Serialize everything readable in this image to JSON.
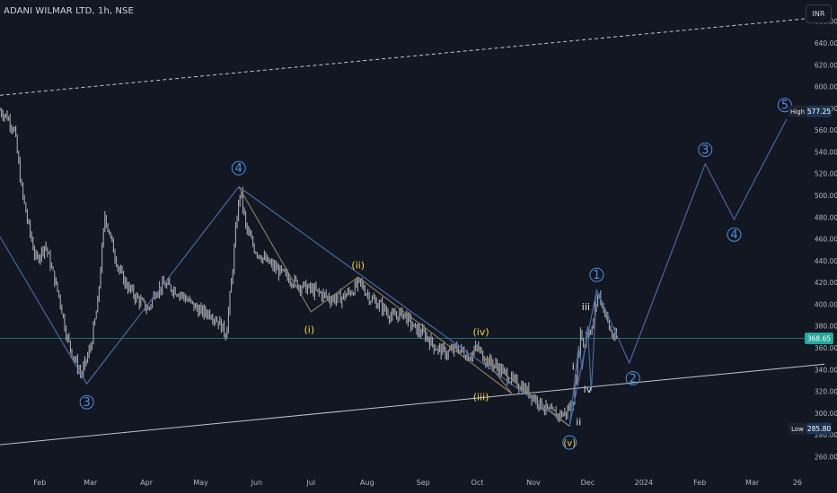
{
  "header": {
    "symbol_title": "ADANI WILMAR LTD, 1h, NSE",
    "currency_button": "INR"
  },
  "colors": {
    "background": "#131722",
    "candle": "#a5a7ad",
    "wave_line": "#4a6fa5",
    "sub_wave_line": "#8b8060",
    "label_blue": "#4f8fd6",
    "label_yellow": "#f0d24c",
    "label_white": "#e0e0e0",
    "trend_line": "#c0c3cc",
    "current_price_line": "#26a69a",
    "badge_dark": "#1e222d",
    "badge_blue": "#1d3452"
  },
  "chart_data": {
    "type": "line",
    "title": "ADANI WILMAR LTD, 1h, NSE",
    "currency": "INR",
    "price_axis": {
      "min": 248,
      "max": 668,
      "ticks": [
        260,
        280,
        300,
        320,
        340,
        360,
        380,
        400,
        420,
        440,
        460,
        480,
        500,
        520,
        540,
        560,
        580,
        600,
        620,
        640,
        660
      ],
      "tick_labels": [
        "260.00",
        "280.00",
        "300.00",
        "320.00",
        "340.00",
        "360.00",
        "380.00",
        "400.00",
        "420.00",
        "440.00",
        "460.00",
        "480.00",
        "500.00",
        "520.00",
        "540.00",
        "560.00",
        "580.00",
        "600.00",
        "620.00",
        "640.00",
        "660.00"
      ]
    },
    "time_axis": {
      "domain": [
        "2023-01-10",
        "2024-03-30"
      ],
      "ticks": [
        {
          "date": "2023-02-01",
          "label": "Feb"
        },
        {
          "date": "2023-03-01",
          "label": "Mar"
        },
        {
          "date": "2023-04-01",
          "label": "Apr"
        },
        {
          "date": "2023-05-01",
          "label": "May"
        },
        {
          "date": "2023-06-01",
          "label": "Jun"
        },
        {
          "date": "2023-07-01",
          "label": "Jul"
        },
        {
          "date": "2023-08-01",
          "label": "Aug"
        },
        {
          "date": "2023-09-01",
          "label": "Sep"
        },
        {
          "date": "2023-10-01",
          "label": "Oct"
        },
        {
          "date": "2023-11-01",
          "label": "Nov"
        },
        {
          "date": "2023-12-01",
          "label": "Dec"
        },
        {
          "date": "2024-01-01",
          "label": "2024"
        },
        {
          "date": "2024-02-01",
          "label": "Feb"
        },
        {
          "date": "2024-03-01",
          "label": "Mar"
        },
        {
          "date": "2024-03-26",
          "label": "26"
        }
      ]
    },
    "price_path": [
      [
        "2023-01-10",
        578
      ],
      [
        "2023-01-14",
        572
      ],
      [
        "2023-01-18",
        560
      ],
      [
        "2023-01-22",
        505
      ],
      [
        "2023-01-26",
        470
      ],
      [
        "2023-01-30",
        440
      ],
      [
        "2023-02-04",
        455
      ],
      [
        "2023-02-08",
        430
      ],
      [
        "2023-02-12",
        405
      ],
      [
        "2023-02-16",
        370
      ],
      [
        "2023-02-20",
        350
      ],
      [
        "2023-02-24",
        335
      ],
      [
        "2023-03-01",
        360
      ],
      [
        "2023-03-05",
        400
      ],
      [
        "2023-03-09",
        482
      ],
      [
        "2023-03-13",
        455
      ],
      [
        "2023-03-17",
        430
      ],
      [
        "2023-03-22",
        415
      ],
      [
        "2023-03-27",
        405
      ],
      [
        "2023-04-02",
        395
      ],
      [
        "2023-04-06",
        412
      ],
      [
        "2023-04-11",
        418
      ],
      [
        "2023-04-16",
        414
      ],
      [
        "2023-04-21",
        408
      ],
      [
        "2023-04-26",
        400
      ],
      [
        "2023-05-01",
        393
      ],
      [
        "2023-05-06",
        392
      ],
      [
        "2023-05-11",
        384
      ],
      [
        "2023-05-15",
        372
      ],
      [
        "2023-05-18",
        420
      ],
      [
        "2023-05-21",
        480
      ],
      [
        "2023-05-23",
        505
      ],
      [
        "2023-05-26",
        470
      ],
      [
        "2023-05-31",
        450
      ],
      [
        "2023-06-06",
        440
      ],
      [
        "2023-06-12",
        432
      ],
      [
        "2023-06-18",
        425
      ],
      [
        "2023-06-24",
        418
      ],
      [
        "2023-06-30",
        414
      ],
      [
        "2023-07-06",
        410
      ],
      [
        "2023-07-12",
        405
      ],
      [
        "2023-07-18",
        406
      ],
      [
        "2023-07-24",
        413
      ],
      [
        "2023-07-28",
        420
      ],
      [
        "2023-08-03",
        405
      ],
      [
        "2023-08-09",
        398
      ],
      [
        "2023-08-15",
        388
      ],
      [
        "2023-08-21",
        392
      ],
      [
        "2023-08-27",
        378
      ],
      [
        "2023-09-02",
        372
      ],
      [
        "2023-09-08",
        360
      ],
      [
        "2023-09-14",
        355
      ],
      [
        "2023-09-20",
        360
      ],
      [
        "2023-09-26",
        352
      ],
      [
        "2023-10-01",
        360
      ],
      [
        "2023-10-05",
        350
      ],
      [
        "2023-10-10",
        345
      ],
      [
        "2023-10-15",
        338
      ],
      [
        "2023-10-20",
        330
      ],
      [
        "2023-10-25",
        325
      ],
      [
        "2023-10-30",
        318
      ],
      [
        "2023-11-04",
        310
      ],
      [
        "2023-11-09",
        302
      ],
      [
        "2023-11-14",
        298
      ],
      [
        "2023-11-19",
        300
      ],
      [
        "2023-11-23",
        312
      ],
      [
        "2023-11-25",
        340
      ],
      [
        "2023-11-27",
        375
      ],
      [
        "2023-11-29",
        360
      ],
      [
        "2023-12-01",
        380
      ],
      [
        "2023-12-03",
        372
      ],
      [
        "2023-12-05",
        395
      ],
      [
        "2023-12-07",
        410
      ],
      [
        "2023-12-09",
        400
      ],
      [
        "2023-12-11",
        390
      ],
      [
        "2023-12-13",
        378
      ],
      [
        "2023-12-15",
        370
      ],
      [
        "2023-12-17",
        368.65
      ]
    ],
    "wave_lines": [
      {
        "name": "primary",
        "points": [
          [
            "2023-01-10",
            462
          ],
          [
            "2023-02-27",
            327
          ],
          [
            "2023-05-22",
            508
          ],
          [
            "2023-11-21",
            288
          ],
          [
            "2023-12-06",
            413
          ],
          [
            "2023-12-24",
            346
          ],
          [
            "2024-02-04",
            529
          ],
          [
            "2024-02-20",
            478
          ],
          [
            "2024-03-20",
            570
          ]
        ]
      },
      {
        "name": "intermediate",
        "points": [
          [
            "2023-05-22",
            508
          ],
          [
            "2023-07-01",
            393
          ],
          [
            "2023-07-27",
            425
          ],
          [
            "2023-10-20",
            318
          ],
          [
            "2023-10-04",
            352
          ],
          [
            "2023-11-21",
            288
          ]
        ]
      },
      {
        "name": "minor",
        "points": [
          [
            "2023-11-21",
            288
          ],
          [
            "2023-11-26",
            362
          ],
          [
            "2023-11-28",
            340
          ],
          [
            "2023-12-01",
            380
          ],
          [
            "2023-12-03",
            320
          ],
          [
            "2023-12-06",
            413
          ]
        ]
      }
    ],
    "wave_labels": [
      {
        "text": "3",
        "date": "2023-02-27",
        "price": 310,
        "style": "circle-blue"
      },
      {
        "text": "4",
        "date": "2023-05-22",
        "price": 525,
        "style": "circle-blue"
      },
      {
        "text": "(i)",
        "date": "2023-06-30",
        "price": 377,
        "style": "yellow"
      },
      {
        "text": "(ii)",
        "date": "2023-07-27",
        "price": 436,
        "style": "yellow"
      },
      {
        "text": "(iii)",
        "date": "2023-10-03",
        "price": 315,
        "style": "yellow"
      },
      {
        "text": "(iv)",
        "date": "2023-10-03",
        "price": 375,
        "style": "yellow"
      },
      {
        "text": "(v)",
        "date": "2023-11-21",
        "price": 273,
        "style": "yellow-circle"
      },
      {
        "text": "i",
        "date": "2023-11-23",
        "price": 343,
        "style": "white"
      },
      {
        "text": "ii",
        "date": "2023-11-26",
        "price": 292,
        "style": "white"
      },
      {
        "text": "iii",
        "date": "2023-11-30",
        "price": 398,
        "style": "white"
      },
      {
        "text": "iv",
        "date": "2023-12-01",
        "price": 322,
        "style": "white"
      },
      {
        "text": "1",
        "date": "2023-12-06",
        "price": 427,
        "style": "circle-blue"
      },
      {
        "text": "2",
        "date": "2023-12-26",
        "price": 332,
        "style": "circle-blue"
      },
      {
        "text": "3",
        "date": "2024-02-04",
        "price": 542,
        "style": "circle-blue"
      },
      {
        "text": "4",
        "date": "2024-02-20",
        "price": 464,
        "style": "circle-blue"
      },
      {
        "text": "5",
        "date": "2024-03-19",
        "price": 583,
        "style": "circle-blue"
      }
    ],
    "trend_lines": [
      {
        "style": "solid",
        "points": [
          [
            "2023-01-10",
            271
          ],
          [
            "2024-04-10",
            345
          ]
        ]
      },
      {
        "style": "dashed",
        "points": [
          [
            "2023-01-10",
            592
          ],
          [
            "2024-04-10",
            664
          ]
        ]
      }
    ],
    "current_price": 368.65,
    "price_badges": [
      {
        "label": "High",
        "value": "577.25",
        "price": 577.25
      },
      {
        "label": "",
        "value": "368.65",
        "price": 368.65
      },
      {
        "label": "Low",
        "value": "285.80",
        "price": 285.8
      }
    ]
  }
}
